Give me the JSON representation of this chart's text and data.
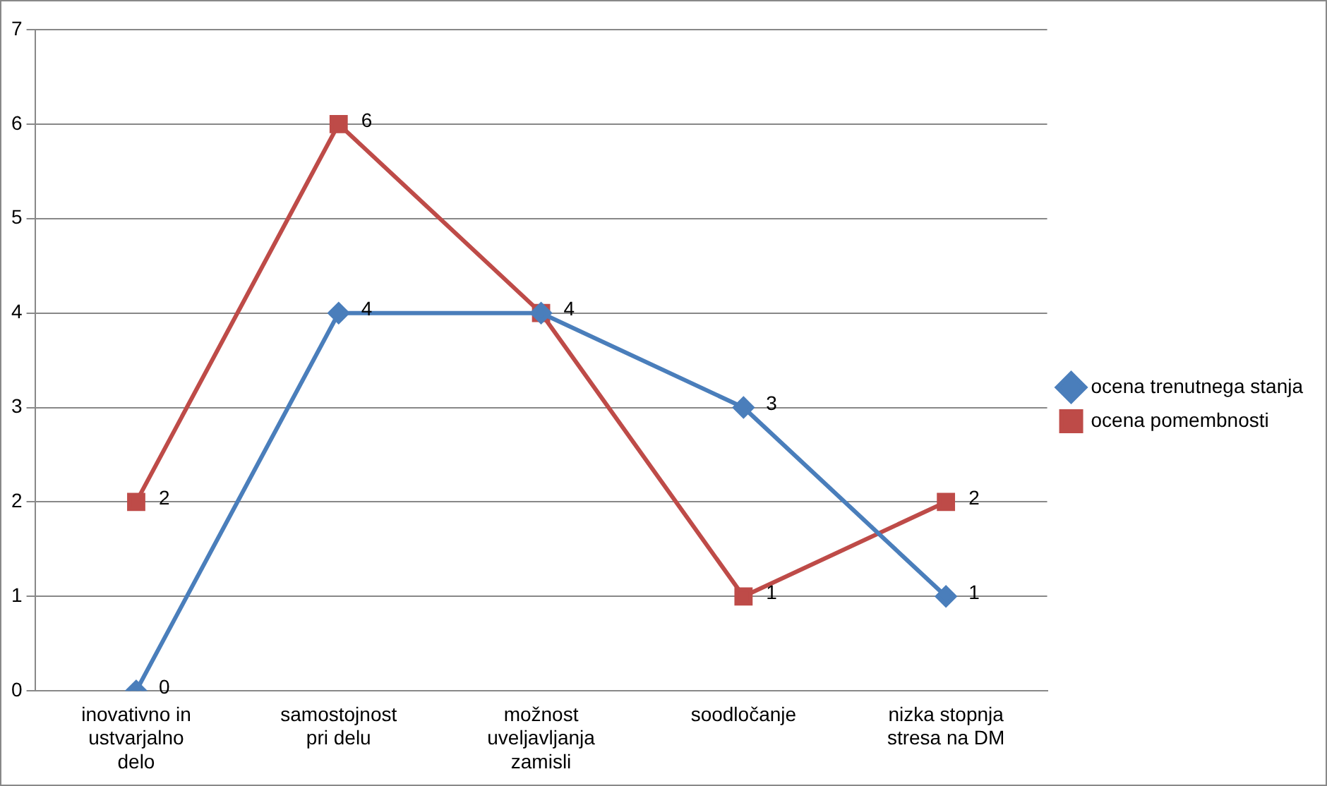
{
  "chart_data": {
    "type": "line",
    "categories": [
      "inovativno in ustvarjalno delo",
      "samostojnost pri delu",
      "možnost uveljavljanja zamisli",
      "soodločanje",
      "nizka stopnja stresa na DM"
    ],
    "series": [
      {
        "name": "ocena trenutnega stanja",
        "color": "#4a7ebb",
        "marker": "diamond",
        "values": [
          0,
          4,
          4,
          3,
          1
        ],
        "value_labels": [
          "0",
          "4",
          null,
          "3",
          "1"
        ]
      },
      {
        "name": "ocena pomembnosti",
        "color": "#be4b48",
        "marker": "square",
        "values": [
          2,
          6,
          4,
          1,
          2
        ],
        "value_labels": [
          "2",
          "6",
          "4",
          "1",
          "2"
        ]
      }
    ],
    "ylim": [
      0,
      7
    ],
    "yticks": [
      0,
      1,
      2,
      3,
      4,
      5,
      6,
      7
    ],
    "grid": "y",
    "legend": "right",
    "line_style": "solid"
  }
}
